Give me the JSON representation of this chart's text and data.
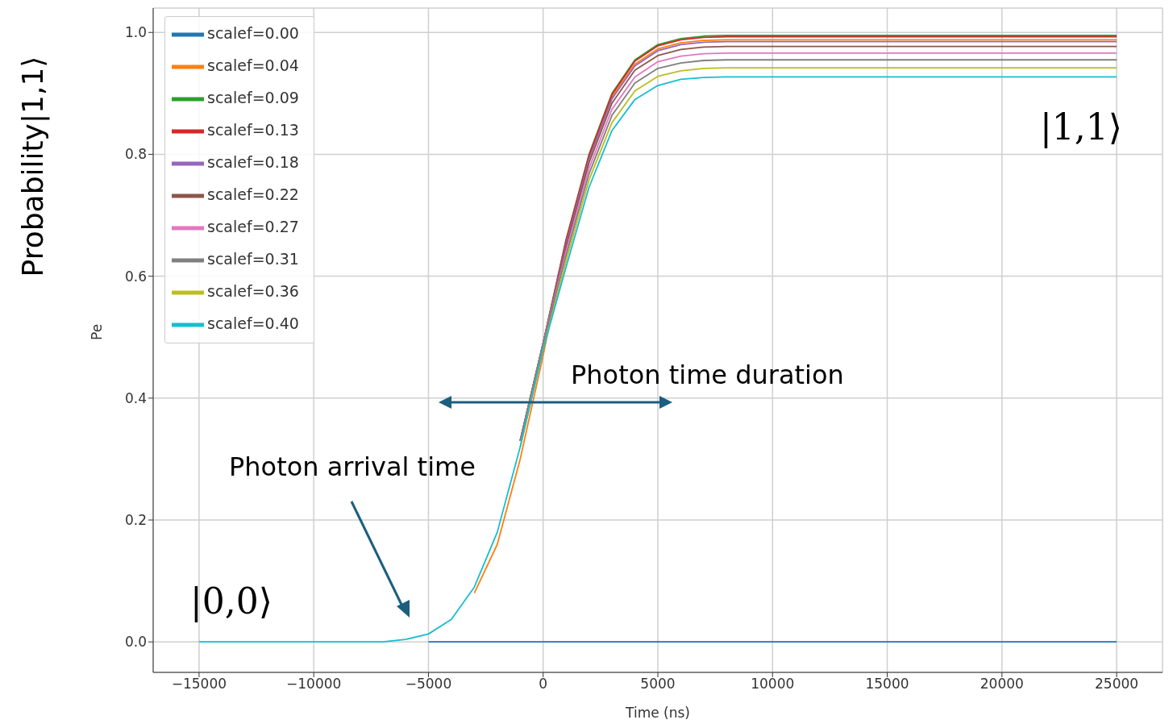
{
  "chart_data": {
    "type": "line",
    "xlabel": "Time (ns)",
    "ylabel": "Pe",
    "x": [
      -15000,
      -7000,
      -6000,
      -5000,
      -4000,
      -3000,
      -2000,
      -1000,
      0,
      1000,
      2000,
      3000,
      4000,
      5000,
      6000,
      7000,
      8000,
      10000,
      25000
    ],
    "series": [
      {
        "name": "scalef=0.00",
        "color": "#1f77b4",
        "values": [
          null,
          null,
          null,
          0,
          0,
          0,
          0,
          0,
          0,
          0,
          0,
          0,
          0,
          0,
          0,
          0,
          0,
          0,
          0
        ]
      },
      {
        "name": "scalef=0.04",
        "color": "#ff7f0e",
        "values": [
          null,
          null,
          null,
          null,
          null,
          0.08,
          0.16,
          0.3,
          0.47,
          0.655,
          0.794,
          0.894,
          0.948,
          0.973,
          0.983,
          0.987,
          0.988,
          0.988,
          0.988
        ]
      },
      {
        "name": "scalef=0.09",
        "color": "#2ca02c",
        "values": [
          null,
          null,
          null,
          null,
          null,
          null,
          null,
          0.33,
          0.49,
          0.66,
          0.8,
          0.9,
          0.955,
          0.98,
          0.99,
          0.994,
          0.995,
          0.995,
          0.995
        ]
      },
      {
        "name": "scalef=0.13",
        "color": "#d62728",
        "values": [
          null,
          null,
          null,
          null,
          null,
          null,
          null,
          0.33,
          0.49,
          0.659,
          0.798,
          0.898,
          0.953,
          0.978,
          0.988,
          0.992,
          0.993,
          0.993,
          0.993
        ]
      },
      {
        "name": "scalef=0.18",
        "color": "#9467bd",
        "values": [
          null,
          null,
          null,
          null,
          null,
          null,
          null,
          0.33,
          0.49,
          0.653,
          0.792,
          0.891,
          0.945,
          0.97,
          0.98,
          0.984,
          0.985,
          0.985,
          0.985
        ]
      },
      {
        "name": "scalef=0.22",
        "color": "#8c564b",
        "values": [
          null,
          null,
          null,
          null,
          null,
          null,
          null,
          0.33,
          0.49,
          0.648,
          0.786,
          0.884,
          0.938,
          0.962,
          0.972,
          0.976,
          0.977,
          0.977,
          0.977
        ]
      },
      {
        "name": "scalef=0.27",
        "color": "#e377c2",
        "values": [
          null,
          null,
          null,
          null,
          null,
          null,
          null,
          0.33,
          0.49,
          0.641,
          0.777,
          0.874,
          0.927,
          0.952,
          0.961,
          0.965,
          0.966,
          0.966,
          0.966
        ]
      },
      {
        "name": "scalef=0.31",
        "color": "#7f7f7f",
        "values": [
          null,
          null,
          null,
          null,
          null,
          null,
          null,
          0.33,
          0.49,
          0.634,
          0.768,
          0.864,
          0.917,
          0.941,
          0.95,
          0.954,
          0.955,
          0.955,
          0.955
        ]
      },
      {
        "name": "scalef=0.36",
        "color": "#bcbd22",
        "values": [
          null,
          null,
          null,
          null,
          null,
          null,
          null,
          0.32,
          0.48,
          0.625,
          0.758,
          0.852,
          0.904,
          0.928,
          0.937,
          0.941,
          0.942,
          0.942,
          0.942
        ]
      },
      {
        "name": "scalef=0.40",
        "color": "#17becf",
        "values": [
          0,
          0,
          0.004,
          0.013,
          0.037,
          0.09,
          0.18,
          0.32,
          0.48,
          0.615,
          0.746,
          0.839,
          0.89,
          0.913,
          0.923,
          0.926,
          0.927,
          0.927,
          0.927
        ]
      }
    ],
    "xlim": [
      -17000,
      27000
    ],
    "xticks": [
      -15000,
      -10000,
      -5000,
      0,
      5000,
      10000,
      15000,
      20000,
      25000
    ],
    "ylim": [
      -0.05,
      1.04
    ],
    "yticks": [
      {
        "value": 0,
        "label": "0.0"
      },
      0.2,
      0.4,
      0.6,
      0.8,
      {
        "value": 1,
        "label": "1.0"
      }
    ],
    "grid": true,
    "legend": "top left",
    "marker": "none",
    "line_style": "solid",
    "annotations": [
      "Photon time duration",
      "Photon arrival time",
      "|0,0⟩",
      "|1,1⟩",
      "Probability|1,1⟩"
    ]
  }
}
